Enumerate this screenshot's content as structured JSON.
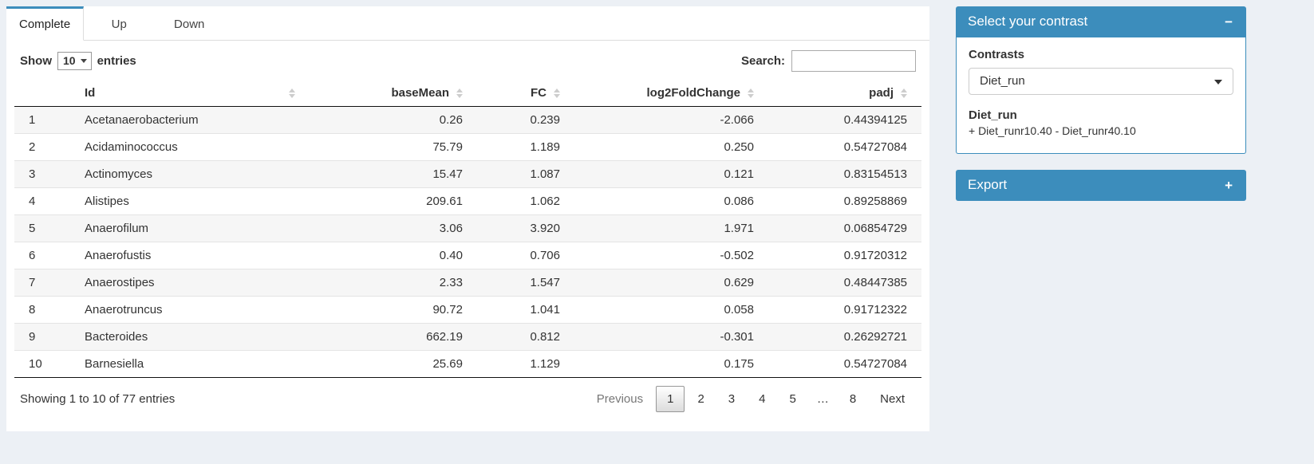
{
  "tabs": [
    {
      "label": "Complete",
      "active": true
    },
    {
      "label": "Up",
      "active": false
    },
    {
      "label": "Down",
      "active": false
    }
  ],
  "table": {
    "length_label_before": "Show",
    "length_value": "10",
    "length_label_after": "entries",
    "search_label": "Search:",
    "search_value": "",
    "columns": [
      "Id",
      "baseMean",
      "FC",
      "log2FoldChange",
      "padj"
    ],
    "rows": [
      {
        "index": "1",
        "id": "Acetanaerobacterium",
        "baseMean": "0.26",
        "fc": "0.239",
        "log2fc": "-2.066",
        "padj": "0.44394125"
      },
      {
        "index": "2",
        "id": "Acidaminococcus",
        "baseMean": "75.79",
        "fc": "1.189",
        "log2fc": "0.250",
        "padj": "0.54727084"
      },
      {
        "index": "3",
        "id": "Actinomyces",
        "baseMean": "15.47",
        "fc": "1.087",
        "log2fc": "0.121",
        "padj": "0.83154513"
      },
      {
        "index": "4",
        "id": "Alistipes",
        "baseMean": "209.61",
        "fc": "1.062",
        "log2fc": "0.086",
        "padj": "0.89258869"
      },
      {
        "index": "5",
        "id": "Anaerofilum",
        "baseMean": "3.06",
        "fc": "3.920",
        "log2fc": "1.971",
        "padj": "0.06854729"
      },
      {
        "index": "6",
        "id": "Anaerofustis",
        "baseMean": "0.40",
        "fc": "0.706",
        "log2fc": "-0.502",
        "padj": "0.91720312"
      },
      {
        "index": "7",
        "id": "Anaerostipes",
        "baseMean": "2.33",
        "fc": "1.547",
        "log2fc": "0.629",
        "padj": "0.48447385"
      },
      {
        "index": "8",
        "id": "Anaerotruncus",
        "baseMean": "90.72",
        "fc": "1.041",
        "log2fc": "0.058",
        "padj": "0.91712322"
      },
      {
        "index": "9",
        "id": "Bacteroides",
        "baseMean": "662.19",
        "fc": "0.812",
        "log2fc": "-0.301",
        "padj": "0.26292721"
      },
      {
        "index": "10",
        "id": "Barnesiella",
        "baseMean": "25.69",
        "fc": "1.129",
        "log2fc": "0.175",
        "padj": "0.54727084"
      }
    ],
    "info": "Showing 1 to 10 of 77 entries",
    "pagination": {
      "previous": "Previous",
      "pages": [
        "1",
        "2",
        "3",
        "4",
        "5",
        "…",
        "8"
      ],
      "current": "1",
      "next": "Next"
    }
  },
  "contrast_panel": {
    "title": "Select your contrast",
    "collapse_icon": "−",
    "contrasts_label": "Contrasts",
    "selected_contrast": "Diet_run",
    "detail_title": "Diet_run",
    "detail_formula": "+ Diet_runr10.40 - Diet_runr40.10"
  },
  "export_panel": {
    "title": "Export",
    "expand_icon": "+"
  },
  "colors": {
    "accent": "#3c8dbc",
    "page_background": "#ecf0f5"
  }
}
